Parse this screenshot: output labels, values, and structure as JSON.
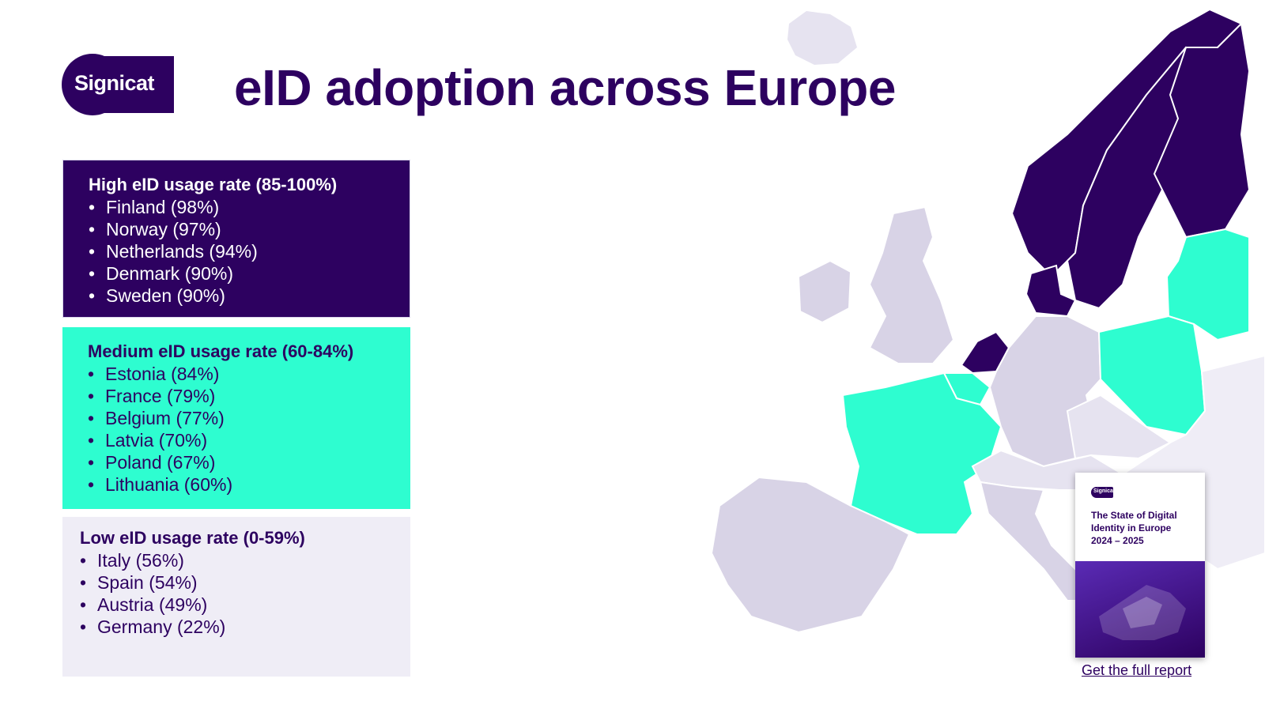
{
  "logo": {
    "text": "Signicat"
  },
  "page_title": "eID adoption across Europe",
  "colors": {
    "high": "#2d0160",
    "medium": "#2efdd0",
    "low": "#efedf6",
    "accent": "#2d0160"
  },
  "groups": {
    "high": {
      "heading": "High eID usage rate (85-100%)",
      "items": [
        "Finland (98%)",
        "Norway (97%)",
        "Netherlands (94%)",
        "Denmark (90%)",
        "Sweden (90%)"
      ]
    },
    "medium": {
      "heading": "Medium eID usage rate (60-84%)",
      "items": [
        "Estonia (84%)",
        "France (79%)",
        "Belgium (77%)",
        "Latvia (70%)",
        "Poland (67%)",
        "Lithuania (60%)"
      ]
    },
    "low": {
      "heading": "Low eID usage rate (0-59%)",
      "items": [
        "Italy (56%)",
        "Spain (54%)",
        "Austria (49%)",
        "Germany (22%)"
      ]
    }
  },
  "report": {
    "logo_text": "Signicat",
    "title_line1": "The State of Digital",
    "title_line2": "Identity in Europe",
    "title_line3": "2024 – 2025",
    "link_text": "Get the full report"
  }
}
